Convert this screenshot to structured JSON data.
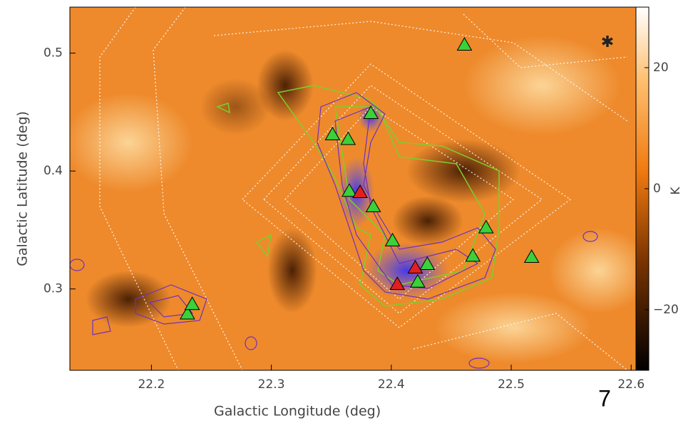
{
  "chart_data": {
    "type": "scatter",
    "x_label": "Galactic Longitude (deg)",
    "y_label": "Galactic Latitude (deg)",
    "xlim": [
      22.132,
      22.604
    ],
    "ylim": [
      0.231,
      0.539
    ],
    "xticks": [
      22.2,
      22.3,
      22.4,
      22.5,
      22.6
    ],
    "yticks": [
      0.3,
      0.4,
      0.5
    ],
    "series": [
      {
        "color": "#3ad13a",
        "x": [
          22.461,
          22.383,
          22.351,
          22.364,
          22.365,
          22.385,
          22.401,
          22.479,
          22.468,
          22.517,
          22.43,
          22.422,
          22.23,
          22.234
        ],
        "y": [
          0.507,
          0.449,
          0.431,
          0.427,
          0.383,
          0.37,
          0.341,
          0.352,
          0.328,
          0.327,
          0.321,
          0.306,
          0.279,
          0.287
        ]
      },
      {
        "color": "#e02020",
        "x": [
          22.374,
          22.42,
          22.405
        ],
        "y": [
          0.382,
          0.318,
          0.304
        ]
      }
    ],
    "colorbar": {
      "label": "K",
      "lim": [
        -30,
        30
      ],
      "ticks": [
        20,
        0,
        {
          "value": -20,
          "label": "−20"
        }
      ]
    },
    "annotation": "7"
  }
}
